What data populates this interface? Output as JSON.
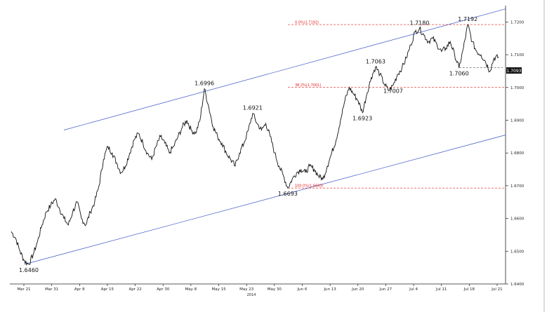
{
  "chart_data": {
    "type": "line",
    "title": "",
    "xlabel": "2014",
    "ylabel": "",
    "x_tick_labels": [
      "Mar 21",
      "Mar 31",
      "Apr 8",
      "Apr 15",
      "Apr 22",
      "Apr 30",
      "May 8",
      "May 15",
      "May 23",
      "May 30",
      "Jun 6",
      "Jun 13",
      "Jun 20",
      "Jun 27",
      "Jul 4",
      "Jul 11",
      "Jul 18",
      "Jul 21"
    ],
    "y_tick_labels": [
      "1.6400",
      "1.6500",
      "1.6600",
      "1.6700",
      "1.6800",
      "1.6900",
      "1.7000",
      "1.7100",
      "1.7200"
    ],
    "ylim": [
      1.64,
      1.725
    ],
    "grid": false,
    "last_price_label": "1.7093",
    "last_price": 1.7093,
    "series": [
      {
        "values": [
          1.656,
          1.654,
          1.65,
          1.647,
          1.646,
          1.649,
          1.653,
          1.658,
          1.662,
          1.664,
          1.666,
          1.663,
          1.66,
          1.658,
          1.662,
          1.665,
          1.66,
          1.658,
          1.662,
          1.665,
          1.67,
          1.678,
          1.682,
          1.68,
          1.677,
          1.674,
          1.676,
          1.68,
          1.684,
          1.686,
          1.683,
          1.68,
          1.678,
          1.682,
          1.685,
          1.683,
          1.68,
          1.682,
          1.685,
          1.688,
          1.69,
          1.687,
          1.686,
          1.69,
          1.6996,
          1.694,
          1.688,
          1.685,
          1.683,
          1.68,
          1.678,
          1.676,
          1.68,
          1.683,
          1.687,
          1.6921,
          1.689,
          1.687,
          1.689,
          1.685,
          1.68,
          1.676,
          1.673,
          1.6693,
          1.672,
          1.674,
          1.675,
          1.674,
          1.676,
          1.675,
          1.673,
          1.672,
          1.676,
          1.68,
          1.684,
          1.69,
          1.696,
          1.7,
          1.698,
          1.696,
          1.6923,
          1.698,
          1.703,
          1.7063,
          1.704,
          1.701,
          1.699,
          1.7007,
          1.704,
          1.706,
          1.709,
          1.713,
          1.717,
          1.718,
          1.716,
          1.714,
          1.715,
          1.713,
          1.711,
          1.712,
          1.714,
          1.71,
          1.706,
          1.712,
          1.7192,
          1.714,
          1.711,
          1.71,
          1.708,
          1.705,
          1.709,
          1.7093
        ]
      }
    ],
    "annotations": [
      {
        "text": "1.6460",
        "index": 4,
        "value": 1.646,
        "position": "below"
      },
      {
        "text": "1.6996",
        "index": 44,
        "value": 1.6996,
        "position": "above"
      },
      {
        "text": "1.6921",
        "index": 55,
        "value": 1.6921,
        "position": "above"
      },
      {
        "text": "1.6693",
        "index": 63,
        "value": 1.6693,
        "position": "below"
      },
      {
        "text": "1.7063",
        "index": 83,
        "value": 1.7063,
        "position": "above"
      },
      {
        "text": "1.6923",
        "index": 80,
        "value": 1.6923,
        "position": "below"
      },
      {
        "text": "1.7007",
        "index": 87,
        "value": 1.7007,
        "position": "below"
      },
      {
        "text": "1.7180",
        "index": 93,
        "value": 1.718,
        "position": "above"
      },
      {
        "text": "1.7192",
        "index": 104,
        "value": 1.7192,
        "position": "above"
      },
      {
        "text": "1.7060",
        "index": 102,
        "value": 1.706,
        "position": "below"
      }
    ],
    "horizontal_levels": [
      {
        "label": "0.0%(1.7192)",
        "value": 1.7192,
        "color": "#e0201c"
      },
      {
        "label": "38.2%(1.7001)",
        "value": 1.7001,
        "color": "#e0201c"
      },
      {
        "label": "100.0%(1.6693)",
        "value": 1.6693,
        "color": "#e0201c"
      }
    ],
    "dashed_support": {
      "value": 1.706,
      "color": "#222222",
      "from_index": 102,
      "to_index": 111
    },
    "channel": {
      "color": "#3a55c8",
      "upper": [
        {
          "index": 0,
          "value": 1.687
        },
        {
          "index": 111,
          "value": 1.724
        }
      ],
      "lower": [
        {
          "index": 0,
          "value": 1.646
        },
        {
          "index": 111,
          "value": 1.6855
        }
      ]
    }
  }
}
